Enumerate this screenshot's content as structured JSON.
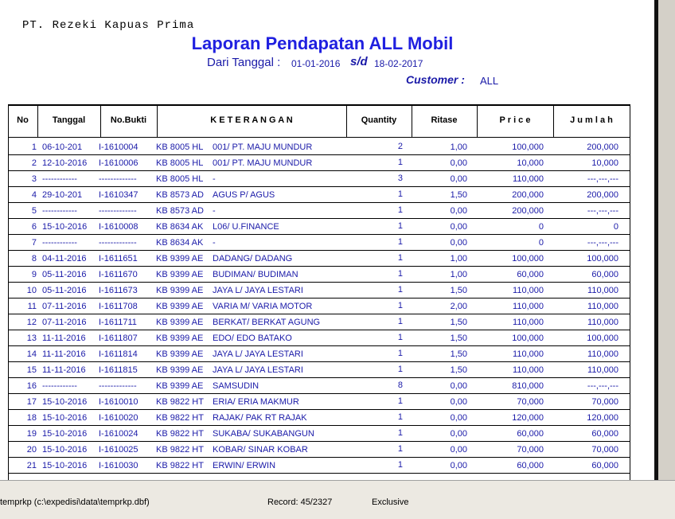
{
  "header": {
    "company": "PT. Rezeki Kapuas Prima",
    "title": "Laporan Pendapatan ALL Mobil",
    "from_label": "Dari Tanggal :",
    "from_date": "01-01-2016",
    "to_label": "s/d",
    "to_date": "18-02-2017",
    "customer_label": "Customer :",
    "customer": "ALL"
  },
  "table": {
    "columns": [
      "No",
      "Tanggal",
      "No.Bukti",
      "K E T E R A N G A N",
      "Quantity",
      "Ritase",
      "P r i c e",
      "J u m l a h"
    ],
    "rows": [
      [
        "1",
        "06-10-201",
        "I-1610004",
        "KB 8005 HL",
        "001/ PT. MAJU MUNDUR",
        "2",
        "1,00",
        "100,000",
        "200,000"
      ],
      [
        "2",
        "12-10-2016",
        "I-1610006",
        "KB 8005 HL",
        "001/ PT. MAJU MUNDUR",
        "1",
        "0,00",
        "10,000",
        "10,000"
      ],
      [
        "3",
        "------------",
        "-------------",
        "KB 8005 HL",
        "-",
        "3",
        "0,00",
        "110,000",
        "---,---,---"
      ],
      [
        "4",
        "29-10-201",
        "I-1610347",
        "KB 8573 AD",
        "AGUS P/ AGUS",
        "1",
        "1,50",
        "200,000",
        "200,000"
      ],
      [
        "5",
        "------------",
        "-------------",
        "KB 8573 AD",
        "-",
        "1",
        "0,00",
        "200,000",
        "---,---,---"
      ],
      [
        "6",
        "15-10-2016",
        "I-1610008",
        "KB 8634 AK",
        "L06/ U.FINANCE",
        "1",
        "0,00",
        "0",
        "0"
      ],
      [
        "7",
        "------------",
        "-------------",
        "KB 8634 AK",
        "-",
        "1",
        "0,00",
        "0",
        "---,---,---"
      ],
      [
        "8",
        "04-11-2016",
        "I-1611651",
        "KB 9399 AE",
        "DADANG/ DADANG",
        "1",
        "1,00",
        "100,000",
        "100,000"
      ],
      [
        "9",
        "05-11-2016",
        "I-1611670",
        "KB 9399 AE",
        "BUDIMAN/ BUDIMAN",
        "1",
        "1,00",
        "60,000",
        "60,000"
      ],
      [
        "10",
        "05-11-2016",
        "I-1611673",
        "KB 9399 AE",
        "JAYA L/ JAYA LESTARI",
        "1",
        "1,50",
        "110,000",
        "110,000"
      ],
      [
        "11",
        "07-11-2016",
        "I-1611708",
        "KB 9399 AE",
        "VARIA M/ VARIA MOTOR",
        "1",
        "2,00",
        "110,000",
        "110,000"
      ],
      [
        "12",
        "07-11-2016",
        "I-1611711",
        "KB 9399 AE",
        "BERKAT/ BERKAT AGUNG",
        "1",
        "1,50",
        "110,000",
        "110,000"
      ],
      [
        "13",
        "11-11-2016",
        "I-1611807",
        "KB 9399 AE",
        "EDO/ EDO BATAKO",
        "1",
        "1,50",
        "100,000",
        "100,000"
      ],
      [
        "14",
        "11-11-2016",
        "I-1611814",
        "KB 9399 AE",
        "JAYA L/ JAYA LESTARI",
        "1",
        "1,50",
        "110,000",
        "110,000"
      ],
      [
        "15",
        "11-11-2016",
        "I-1611815",
        "KB 9399 AE",
        "JAYA L/ JAYA LESTARI",
        "1",
        "1,50",
        "110,000",
        "110,000"
      ],
      [
        "16",
        "------------",
        "-------------",
        "KB 9399 AE",
        "SAMSUDIN",
        "8",
        "0,00",
        "810,000",
        "---,---,---"
      ],
      [
        "17",
        "15-10-2016",
        "I-1610010",
        "KB 9822 HT",
        "ERIA/ ERIA MAKMUR",
        "1",
        "0,00",
        "70,000",
        "70,000"
      ],
      [
        "18",
        "15-10-2016",
        "I-1610020",
        "KB 9822 HT",
        "RAJAK/ PAK RT RAJAK",
        "1",
        "0,00",
        "120,000",
        "120,000"
      ],
      [
        "19",
        "15-10-2016",
        "I-1610024",
        "KB 9822 HT",
        "SUKABA/ SUKABANGUN",
        "1",
        "0,00",
        "60,000",
        "60,000"
      ],
      [
        "20",
        "15-10-2016",
        "I-1610025",
        "KB 9822 HT",
        "KOBAR/ SINAR KOBAR",
        "1",
        "0,00",
        "70,000",
        "70,000"
      ],
      [
        "21",
        "15-10-2016",
        "I-1610030",
        "KB 9822 HT",
        "ERWIN/ ERWIN",
        "1",
        "0,00",
        "60,000",
        "60,000"
      ]
    ]
  },
  "status": {
    "file": "temprkp (c:\\expedisi\\data\\temprkp.dbf)",
    "record": "Record: 45/2327",
    "mode": "Exclusive"
  }
}
